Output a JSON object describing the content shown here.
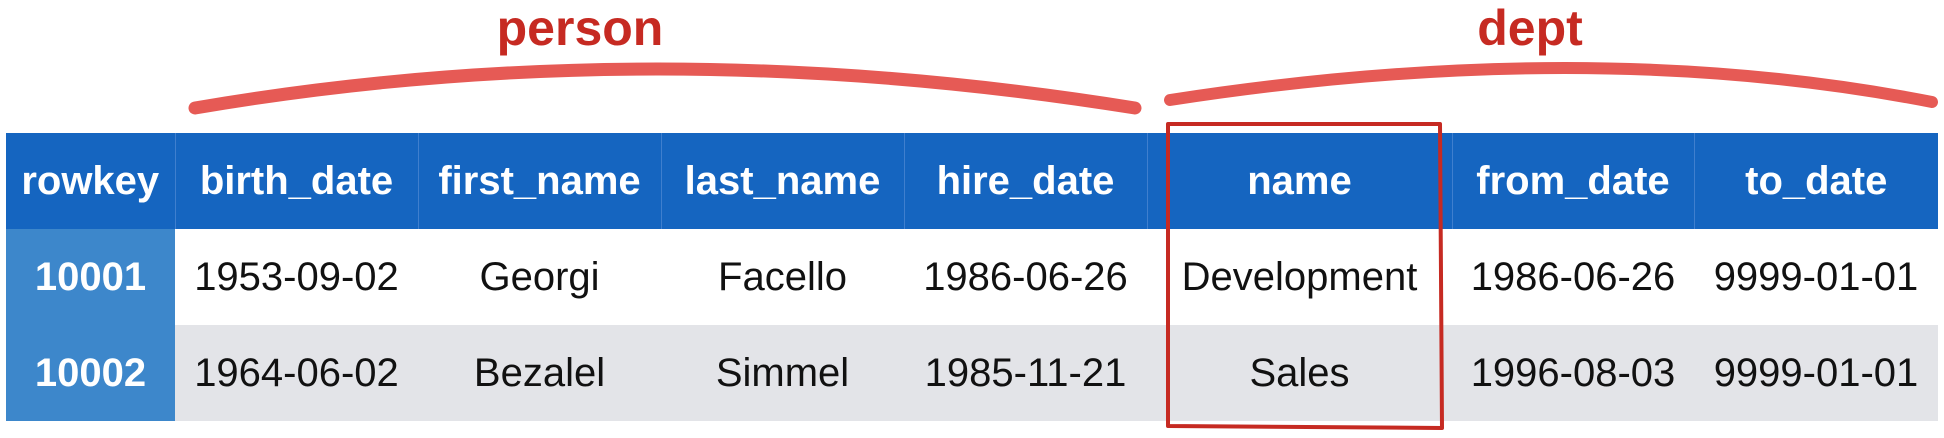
{
  "groups": {
    "person": "person",
    "dept": "dept"
  },
  "columns": [
    "rowkey",
    "birth_date",
    "first_name",
    "last_name",
    "hire_date",
    "name",
    "from_date",
    "to_date"
  ],
  "rows": [
    [
      "10001",
      "1953-09-02",
      "Georgi",
      "Facello",
      "1986-06-26",
      "Development",
      "1986-06-26",
      "9999-01-01"
    ],
    [
      "10002",
      "1964-06-02",
      "Bezalel",
      "Simmel",
      "1985-11-21",
      "Sales",
      "1996-08-03",
      "9999-01-01"
    ]
  ],
  "colors": {
    "header_bg": "#1565c0",
    "rowkey_bg": "#3d87cb",
    "annotation": "#c62a22",
    "arc": "#e65a55",
    "alt_row_bg": "#e3e4e8"
  },
  "highlighted_column": "name"
}
